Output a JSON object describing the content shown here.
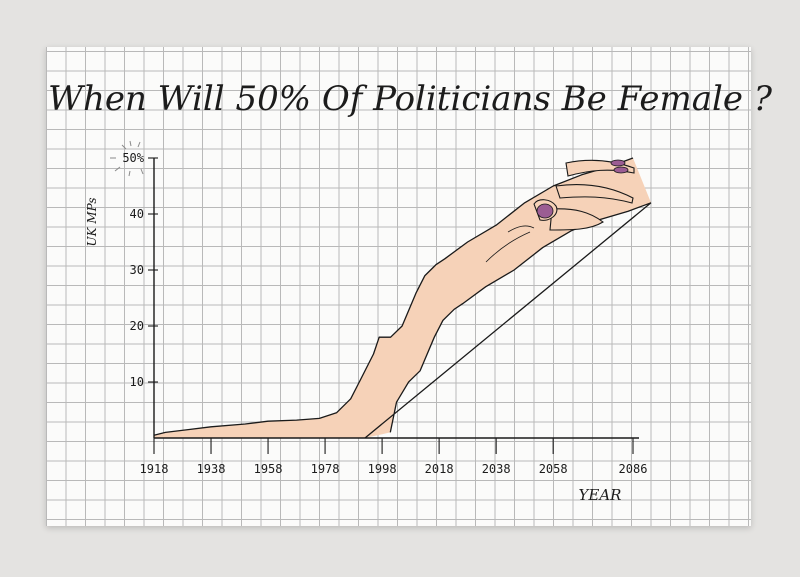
{
  "chart_data": {
    "type": "area",
    "title": "When Will 50% Of Politicians Be Female ?",
    "xlabel": "YEAR",
    "ylabel": "UK MPs",
    "x_ticks": [
      "1918",
      "1938",
      "1958",
      "1978",
      "1998",
      "2018",
      "2038",
      "2058",
      "2086"
    ],
    "y_ticks": [
      "10",
      "20",
      "30",
      "40",
      "50%"
    ],
    "xlim": [
      1918,
      2086
    ],
    "ylim": [
      0,
      50
    ],
    "grid": true,
    "series": [
      {
        "x": [
          1918,
          1922,
          1930,
          1938,
          1950,
          1958,
          1968,
          1976,
          1982,
          1987,
          1990,
          1995,
          1997,
          2001,
          2005,
          2010,
          2013,
          2017,
          2020,
          2028,
          2038,
          2048,
          2058,
          2068,
          2078,
          2086
        ],
        "values": [
          0.5,
          1,
          1.5,
          2,
          2.5,
          3,
          3.2,
          3.5,
          4.5,
          7,
          10,
          15,
          18,
          18,
          20,
          26,
          29,
          31,
          32,
          35,
          38,
          42,
          45,
          47,
          48.5,
          50
        ]
      }
    ],
    "fill_color": "#f6d2b8",
    "line_color": "#1a1a1a",
    "nail_color": "#9b5d93"
  }
}
